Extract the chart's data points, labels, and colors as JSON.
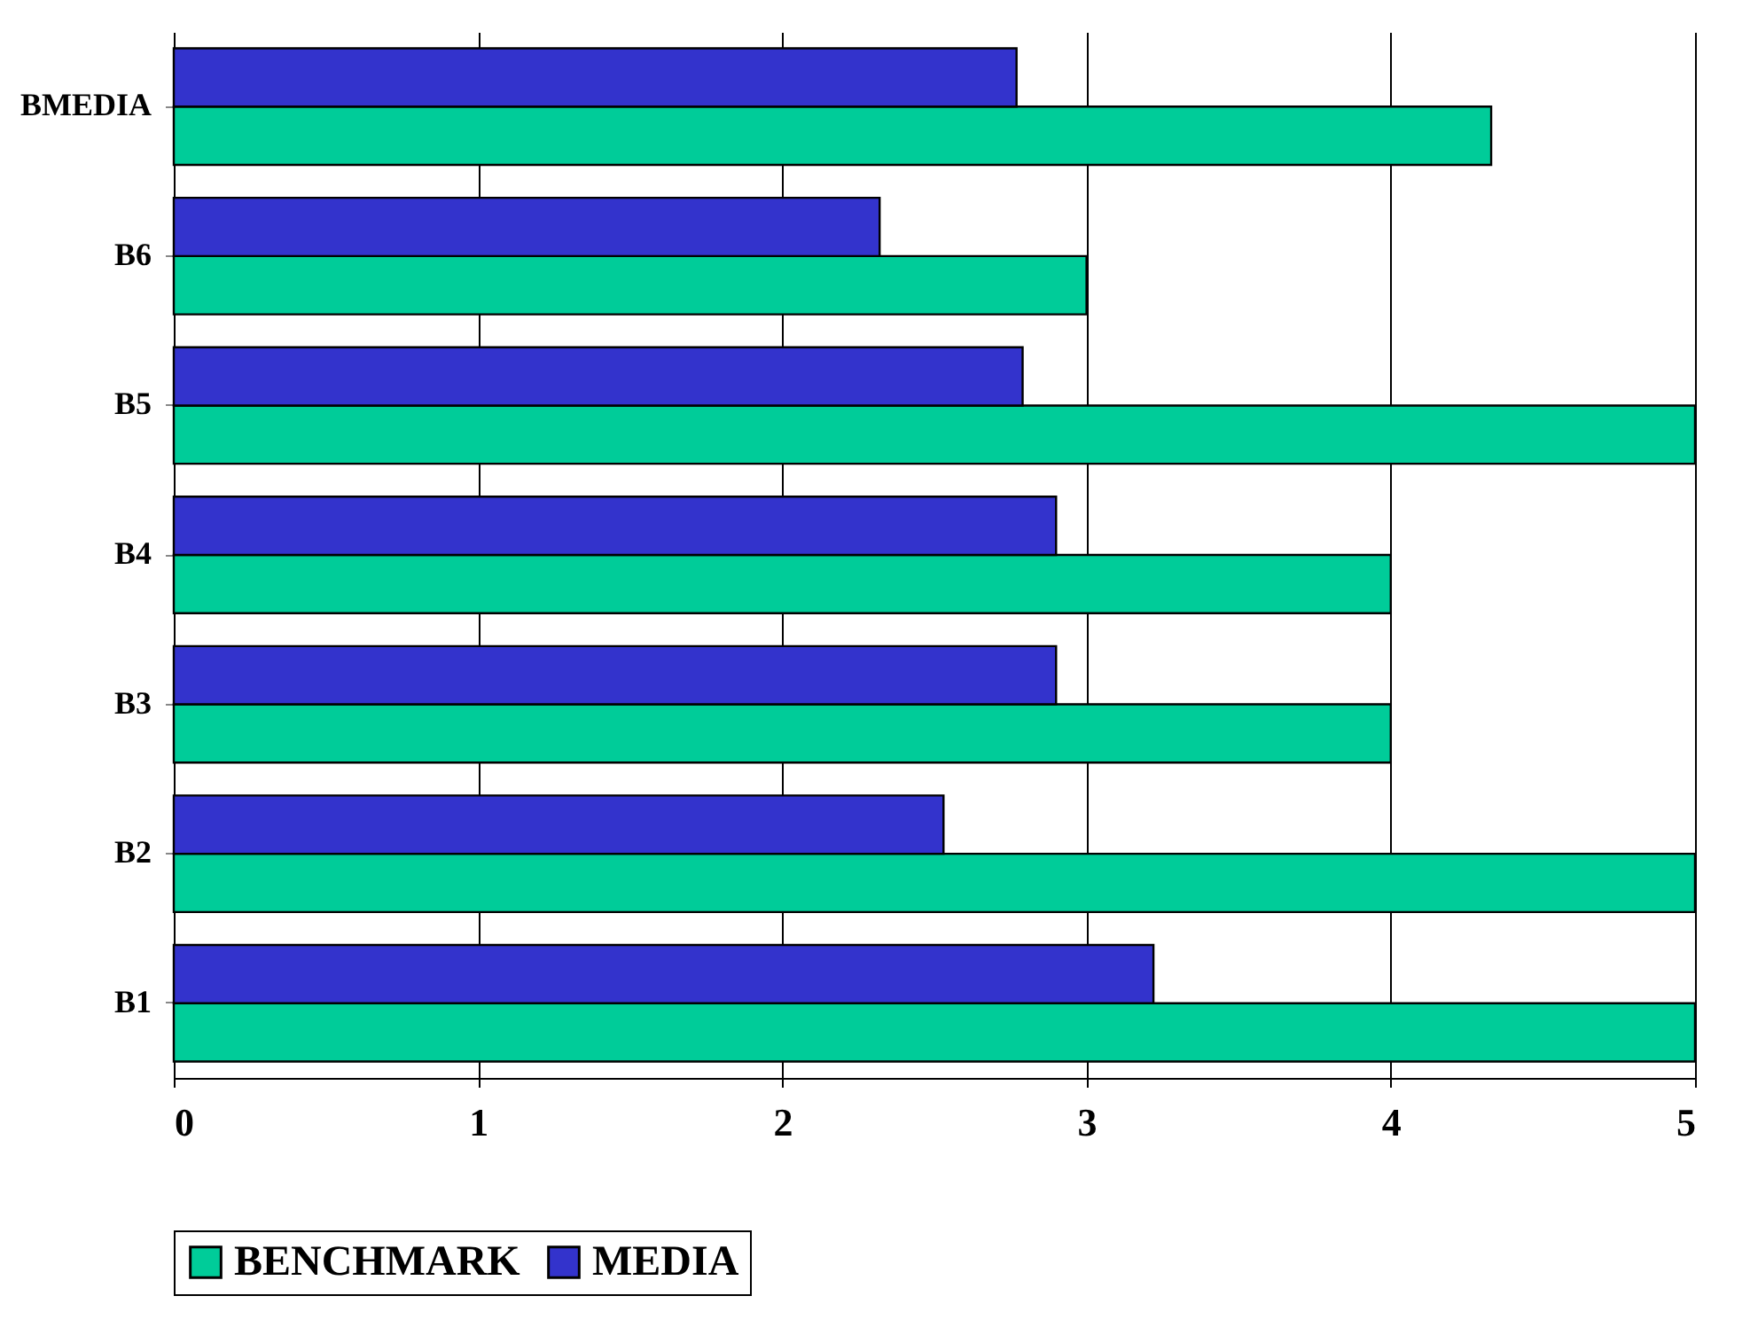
{
  "chart_data": {
    "type": "bar",
    "orientation": "horizontal",
    "categories": [
      "BMEDIA",
      "B6",
      "B5",
      "B4",
      "B3",
      "B2",
      "B1"
    ],
    "series": [
      {
        "name": "BENCHMARK",
        "color": "#00cc99",
        "values": [
          4.33,
          3.0,
          5,
          4,
          4,
          5,
          5
        ]
      },
      {
        "name": "MEDIA",
        "color": "#3333cc",
        "values": [
          2.77,
          2.32,
          2.79,
          2.9,
          2.9,
          2.53,
          3.22
        ]
      }
    ],
    "xlim": [
      0,
      5
    ],
    "xticks": [
      0,
      1,
      2,
      3,
      4,
      5
    ],
    "grid": "x",
    "legend": "bottom"
  }
}
